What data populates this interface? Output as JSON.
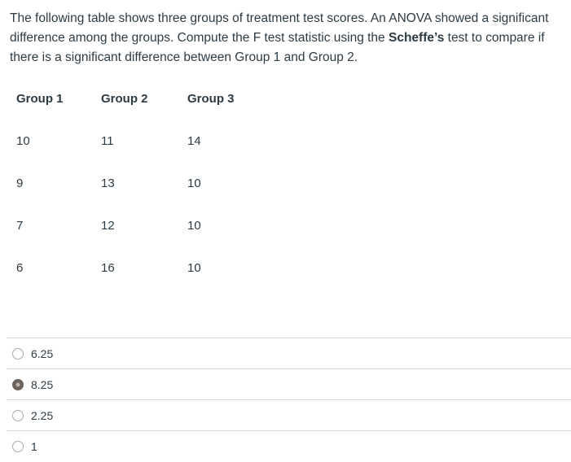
{
  "question": {
    "line1": "The following table shows three groups of treatment test scores. An ANOVA showed a significant",
    "line2_pre": "difference among the groups. Compute the F test statistic using the ",
    "line2_bold": "Scheffe’s",
    "line2_post": " test to compare if",
    "line3": "there is a significant difference between Group 1 and Group 2."
  },
  "table": {
    "headers": [
      "Group 1",
      "Group 2",
      "Group 3"
    ],
    "rows": [
      [
        "10",
        "11",
        "14"
      ],
      [
        "9",
        "13",
        "10"
      ],
      [
        "7",
        "12",
        "10"
      ],
      [
        "6",
        "16",
        "10"
      ]
    ]
  },
  "options": [
    {
      "label": "6.25",
      "selected": false
    },
    {
      "label": "8.25",
      "selected": true
    },
    {
      "label": "2.25",
      "selected": false
    },
    {
      "label": "1",
      "selected": false
    }
  ],
  "colors": {
    "text": "#2d3b45",
    "divider": "#d7d7d7",
    "radio_border": "#a9a9a9",
    "radio_selected_fill": "#6b625b",
    "radio_selected_dot": "#bcb7b2"
  }
}
